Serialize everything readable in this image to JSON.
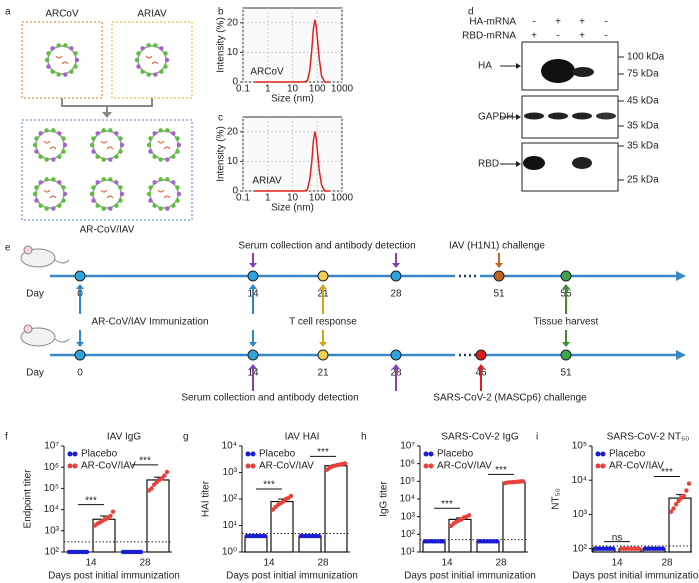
{
  "figure": {
    "panel_labels": [
      "a",
      "b",
      "c",
      "d",
      "e",
      "f",
      "g",
      "h",
      "i"
    ],
    "a": {
      "particles": [
        "ARCoV",
        "ARIAV"
      ],
      "mixture": "AR-CoV/IAV"
    },
    "d": {
      "rows": [
        {
          "name": "HA-mRNA",
          "signs": [
            "-",
            "+",
            "+",
            "-"
          ]
        },
        {
          "name": "RBD-mRNA",
          "signs": [
            "+",
            "-",
            "+",
            "-"
          ]
        }
      ],
      "blots": [
        {
          "name": "HA",
          "markers": [
            "100 kDa",
            "75 kDa"
          ]
        },
        {
          "name": "GAPDH",
          "markers": [
            "45 kDa",
            "35 kDa"
          ]
        },
        {
          "name": "RBD",
          "markers": [
            "35 kDa",
            "25 kDa"
          ]
        }
      ]
    },
    "e": {
      "day_label": "Day",
      "top_days": [
        "0",
        "14",
        "21",
        "28",
        "51",
        "55"
      ],
      "bottom_days": [
        "0",
        "14",
        "21",
        "28",
        "46",
        "51"
      ],
      "events": {
        "serum_top": "Serum collection and antibody detection",
        "iav_challenge": "IAV (H1N1) challenge",
        "immunization": "AR-CoV/IAV Immunization",
        "t_cell": "T cell response",
        "tissue": "Tissue harvest",
        "serum_bottom": "Serum collection and antibody detection",
        "sars_challenge": "SARS-CoV-2 (MASCp6) challenge"
      }
    }
  },
  "chart_data": [
    {
      "type": "line",
      "label": "ARCoV",
      "x_label": "Size (nm)",
      "y_label": "Intensity (%)",
      "xlog": true,
      "xlim": [
        0.1,
        1000
      ],
      "xticks": [
        0.1,
        1,
        10,
        100,
        1000
      ],
      "ylim": [
        0,
        25
      ],
      "yticks": [
        0,
        10,
        20
      ],
      "grid": true,
      "x": [
        0.3,
        1,
        10,
        30,
        40,
        50,
        60,
        70,
        80,
        90,
        100,
        120,
        150,
        200,
        300
      ],
      "series": [
        {
          "color": "#e3201b",
          "values": [
            0,
            0,
            0,
            0,
            0.5,
            4,
            11,
            18,
            21,
            19,
            15,
            8,
            2,
            0,
            0
          ]
        }
      ]
    },
    {
      "type": "line",
      "label": "ARIAV",
      "x_label": "Size (nm)",
      "y_label": "Intensity (%)",
      "xlog": true,
      "xlim": [
        0.1,
        1000
      ],
      "xticks": [
        0.1,
        1,
        10,
        100,
        1000
      ],
      "ylim": [
        0,
        25
      ],
      "yticks": [
        0,
        10,
        20
      ],
      "grid": true,
      "x": [
        0.3,
        1,
        10,
        30,
        40,
        50,
        60,
        70,
        80,
        90,
        100,
        120,
        150,
        200,
        300
      ],
      "series": [
        {
          "color": "#e3201b",
          "values": [
            0,
            0,
            0,
            0,
            0.5,
            4,
            10,
            17,
            20,
            18,
            14,
            7,
            2,
            0,
            0
          ]
        }
      ]
    },
    {
      "type": "bar",
      "title": "IAV IgG",
      "y_label": "Endpoint titer",
      "x_label": "Days post initial immunization",
      "ylog": true,
      "ylim": [
        100,
        10000000
      ],
      "yticks": [
        {
          "value": 100,
          "label": "10²"
        },
        {
          "value": 1000,
          "label": "10³"
        },
        {
          "value": 10000,
          "label": "10⁴"
        },
        {
          "value": 100000,
          "label": "10⁵"
        },
        {
          "value": 1000000,
          "label": "10⁶"
        },
        {
          "value": 10000000,
          "label": "10⁷"
        }
      ],
      "categories": [
        "14",
        "28"
      ],
      "dotted_line": 300,
      "significance": [
        "***",
        "***"
      ],
      "series": [
        {
          "name": "Placebo",
          "color": "#1c1cd6",
          "values": [
            100,
            100
          ],
          "errors": [
            0,
            0
          ],
          "points": [
            [
              100,
              100,
              100,
              100,
              100,
              100,
              100,
              100
            ],
            [
              100,
              100,
              100,
              100,
              100,
              100,
              100,
              100
            ]
          ]
        },
        {
          "name": "AR-CoV/IAV",
          "color": "#e8413c",
          "values": [
            3500,
            250000
          ],
          "errors": [
            1500,
            90000
          ],
          "points": [
            [
              1800,
              2200,
              2500,
              3000,
              3500,
              4000,
              5000,
              8000
            ],
            [
              80000,
              100000,
              150000,
              200000,
              250000,
              300000,
              400000,
              600000
            ]
          ]
        }
      ]
    },
    {
      "type": "bar",
      "title": "IAV HAI",
      "y_label": "HAI titer",
      "x_label": "Days post initial immunization",
      "ylog": true,
      "ylim": [
        1,
        10000
      ],
      "yticks": [
        {
          "value": 1,
          "label": "10⁰"
        },
        {
          "value": 10,
          "label": "10¹"
        },
        {
          "value": 100,
          "label": "10²"
        },
        {
          "value": 1000,
          "label": "10³"
        },
        {
          "value": 10000,
          "label": "10⁴"
        }
      ],
      "categories": [
        "14",
        "28"
      ],
      "dotted_line": 5,
      "significance": [
        "***",
        "***"
      ],
      "series": [
        {
          "name": "Placebo",
          "color": "#1c1cd6",
          "values": [
            4,
            4
          ],
          "errors": [
            0,
            0
          ],
          "points": [
            [
              4,
              4,
              4,
              4,
              4,
              4,
              4,
              4
            ],
            [
              4,
              4,
              4,
              4,
              4,
              4,
              4,
              4
            ]
          ]
        },
        {
          "name": "AR-CoV/IAV",
          "color": "#e8413c",
          "values": [
            80,
            1800
          ],
          "errors": [
            20,
            200
          ],
          "points": [
            [
              40,
              50,
              60,
              70,
              80,
              100,
              110,
              130
            ],
            [
              1280,
              1500,
              1700,
              1800,
              1900,
              2000,
              2100,
              2200
            ]
          ]
        }
      ]
    },
    {
      "type": "bar",
      "title": "SARS-CoV-2 IgG",
      "y_label": "IgG titer",
      "x_label": "Days post initial immunization",
      "ylog": true,
      "ylim": [
        10,
        10000000
      ],
      "yticks": [
        {
          "value": 10,
          "label": "10¹"
        },
        {
          "value": 100,
          "label": "10²"
        },
        {
          "value": 1000,
          "label": "10³"
        },
        {
          "value": 10000,
          "label": "10⁴"
        },
        {
          "value": 100000,
          "label": "10⁵"
        },
        {
          "value": 1000000,
          "label": "10⁶"
        },
        {
          "value": 10000000,
          "label": "10⁷"
        }
      ],
      "categories": [
        "14",
        "28"
      ],
      "dotted_line": 50,
      "significance": [
        "***",
        "***"
      ],
      "series": [
        {
          "name": "Placebo",
          "color": "#1c1cd6",
          "values": [
            40,
            40
          ],
          "errors": [
            0,
            0
          ],
          "points": [
            [
              40,
              40,
              40,
              40,
              40,
              40,
              40,
              40
            ],
            [
              40,
              40,
              40,
              40,
              40,
              40,
              40,
              40
            ]
          ]
        },
        {
          "name": "AR-CoV/IAV",
          "color": "#e8413c",
          "values": [
            700,
            90000
          ],
          "errors": [
            150,
            5000
          ],
          "points": [
            [
              300,
              400,
              500,
              600,
              700,
              900,
              1000,
              1200
            ],
            [
              80000,
              85000,
              88000,
              90000,
              92000,
              95000,
              98000,
              100000
            ]
          ]
        }
      ]
    },
    {
      "type": "bar",
      "title": "SARS-CoV-2 NT₅₀",
      "y_label": "NT₅₀",
      "x_label": "Days post initial immunization",
      "ylog": true,
      "ylim": [
        80,
        100000
      ],
      "yticks": [
        {
          "value": 100,
          "label": "10²"
        },
        {
          "value": 1000,
          "label": "10³"
        },
        {
          "value": 10000,
          "label": "10⁴"
        },
        {
          "value": 100000,
          "label": "10⁵"
        }
      ],
      "categories": [
        "14",
        "28"
      ],
      "dotted_line": 120,
      "significance": [
        "ns",
        "***"
      ],
      "series": [
        {
          "name": "Placebo",
          "color": "#1c1cd6",
          "values": [
            100,
            100
          ],
          "errors": [
            0,
            0
          ],
          "points": [
            [
              100,
              100,
              100,
              100,
              100,
              100,
              100,
              100
            ],
            [
              100,
              100,
              100,
              100,
              100,
              100,
              100,
              100
            ]
          ]
        },
        {
          "name": "AR-CoV/IAV",
          "color": "#e8413c",
          "values": [
            100,
            3000
          ],
          "errors": [
            0,
            800
          ],
          "points": [
            [
              100,
              100,
              100,
              100,
              100,
              100,
              100,
              100
            ],
            [
              1200,
              1500,
              2000,
              2500,
              3000,
              3500,
              5000,
              8000
            ]
          ]
        }
      ]
    }
  ]
}
